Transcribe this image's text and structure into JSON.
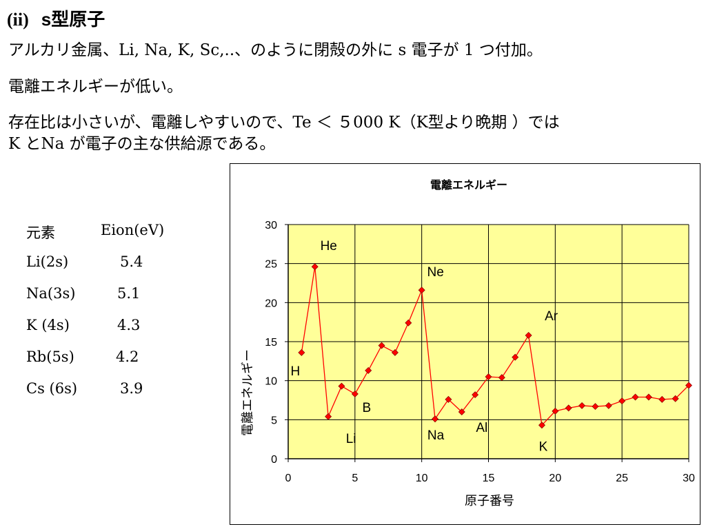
{
  "slide": {
    "heading_num": "(ii)",
    "heading_text": "s型原子",
    "line1": "アルカリ金属、Li, Na, K, Sc,..、のように閉殻の外に s 電子が 1 つ付加。",
    "line2": "電離エネルギーが低い。",
    "line3": "存在比は小さいが、電離しやすいので、Te ＜ ５000 K（K型より晩期 ）では",
    "line4": "K とNa が電子の主な供給源である。"
  },
  "table": {
    "headers": [
      "元素",
      "Eion(eV)"
    ],
    "rows": [
      {
        "element": "Li(2s)",
        "eion": "5.4"
      },
      {
        "element": "Na(3s)",
        "eion": "5.1"
      },
      {
        "element": "K (4s)",
        "eion": "4.3"
      },
      {
        "element": "Rb(5s)",
        "eion": "4.2"
      },
      {
        "element": "Cs (6s)",
        "eion": "3.9"
      }
    ]
  },
  "chart_data": {
    "type": "line",
    "title": "電離エネルギー",
    "xlabel": "原子番号",
    "ylabel": "電離エネルギー",
    "xlim": [
      0,
      30
    ],
    "ylim": [
      0,
      30
    ],
    "xticks": [
      0,
      5,
      10,
      15,
      20,
      25,
      30
    ],
    "yticks": [
      0,
      5,
      10,
      15,
      20,
      25,
      30
    ],
    "grid": true,
    "plot_background": "#ffff99",
    "series_color": "#ff0000",
    "marker_color": "#ff0000",
    "x": [
      1,
      2,
      3,
      4,
      5,
      6,
      7,
      8,
      9,
      10,
      11,
      12,
      13,
      14,
      15,
      16,
      17,
      18,
      19,
      20,
      21,
      22,
      23,
      24,
      25,
      26,
      27,
      28,
      29,
      30
    ],
    "y": [
      13.6,
      24.6,
      5.4,
      9.3,
      8.3,
      11.3,
      14.5,
      13.6,
      17.4,
      21.6,
      5.1,
      7.6,
      6.0,
      8.2,
      10.5,
      10.4,
      13.0,
      15.8,
      4.3,
      6.1,
      6.5,
      6.8,
      6.7,
      6.8,
      7.4,
      7.9,
      7.9,
      7.6,
      7.7,
      9.4
    ],
    "annotations": [
      {
        "text": "H",
        "x": 1
      },
      {
        "text": "He",
        "x": 2
      },
      {
        "text": "Li",
        "x": 3
      },
      {
        "text": "B",
        "x": 5
      },
      {
        "text": "Ne",
        "x": 10
      },
      {
        "text": "Na",
        "x": 11
      },
      {
        "text": "Al",
        "x": 13
      },
      {
        "text": "Ar",
        "x": 18
      },
      {
        "text": "K",
        "x": 19
      }
    ]
  }
}
